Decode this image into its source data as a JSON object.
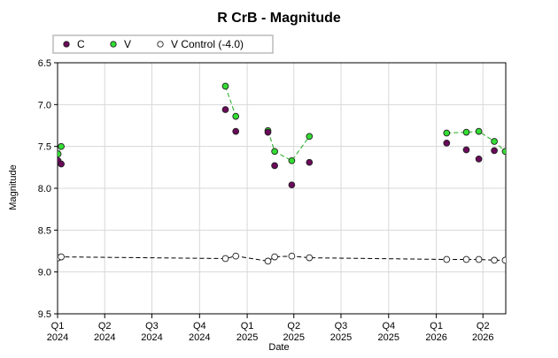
{
  "chart_data": {
    "type": "scatter",
    "title": "R CrB - Magnitude",
    "xlabel": "Date",
    "ylabel": "Magnitude",
    "y_axis_inverted": true,
    "ylim": [
      6.5,
      9.5
    ],
    "yticks": [
      "6.5",
      "7.0",
      "7.5",
      "8.0",
      "8.5",
      "9.0",
      "9.5"
    ],
    "xlim": [
      "2024-01-01",
      "2026-05-15"
    ],
    "xticks": [
      {
        "date": "2024-01-01",
        "quarter": "Q1",
        "year": "2024"
      },
      {
        "date": "2024-04-01",
        "quarter": "Q2",
        "year": "2024"
      },
      {
        "date": "2024-07-01",
        "quarter": "Q3",
        "year": "2024"
      },
      {
        "date": "2024-10-01",
        "quarter": "Q4",
        "year": "2024"
      },
      {
        "date": "2025-01-01",
        "quarter": "Q1",
        "year": "2025"
      },
      {
        "date": "2025-04-01",
        "quarter": "Q2",
        "year": "2025"
      },
      {
        "date": "2025-07-01",
        "quarter": "Q3",
        "year": "2025"
      },
      {
        "date": "2025-10-01",
        "quarter": "Q4",
        "year": "2025"
      },
      {
        "date": "2026-01-01",
        "quarter": "Q1",
        "year": "2026"
      },
      {
        "date": "2026-04-01",
        "quarter": "Q2",
        "year": "2026"
      }
    ],
    "grid": true,
    "legend_position": "top-left",
    "series": [
      {
        "name": "C",
        "color": "#6a0a5a",
        "fill": "#6a0a5a",
        "connected": false,
        "points": [
          {
            "x": "2024-01-02",
            "y": 7.67
          },
          {
            "x": "2024-01-08",
            "y": 7.71
          },
          {
            "x": "2024-11-20",
            "y": 7.06
          },
          {
            "x": "2024-12-10",
            "y": 7.32
          },
          {
            "x": "2025-02-10",
            "y": 7.33
          },
          {
            "x": "2025-02-23",
            "y": 7.73
          },
          {
            "x": "2025-03-28",
            "y": 7.96
          },
          {
            "x": "2025-05-01",
            "y": 7.69
          },
          {
            "x": "2026-01-21",
            "y": 7.46
          },
          {
            "x": "2026-02-28",
            "y": 7.54
          },
          {
            "x": "2026-03-24",
            "y": 7.65
          },
          {
            "x": "2026-04-23",
            "y": 7.55
          }
        ]
      },
      {
        "name": "V",
        "color": "#22aa22",
        "fill": "#33dd33",
        "connected": true,
        "line_style": "dashed",
        "segments": [
          [
            {
              "x": "2024-01-02",
              "y": 7.59
            },
            {
              "x": "2024-01-08",
              "y": 7.5
            }
          ],
          [
            {
              "x": "2024-11-20",
              "y": 6.78
            },
            {
              "x": "2024-12-10",
              "y": 7.14
            }
          ],
          [
            {
              "x": "2025-02-10",
              "y": 7.31
            },
            {
              "x": "2025-02-23",
              "y": 7.56
            },
            {
              "x": "2025-03-28",
              "y": 7.67
            },
            {
              "x": "2025-05-01",
              "y": 7.38
            }
          ],
          [
            {
              "x": "2026-01-21",
              "y": 7.34
            },
            {
              "x": "2026-02-28",
              "y": 7.33
            },
            {
              "x": "2026-03-24",
              "y": 7.32
            },
            {
              "x": "2026-04-23",
              "y": 7.44
            },
            {
              "x": "2026-05-14",
              "y": 7.56
            }
          ]
        ]
      },
      {
        "name": "V Control (-4.0)",
        "color": "#000000",
        "fill": "#ffffff",
        "connected": true,
        "line_style": "dashed",
        "segments": [
          [
            {
              "x": "2024-01-02",
              "y": 8.83
            },
            {
              "x": "2024-01-08",
              "y": 8.82
            },
            {
              "x": "2024-11-20",
              "y": 8.84
            },
            {
              "x": "2024-12-10",
              "y": 8.81
            },
            {
              "x": "2025-02-10",
              "y": 8.87
            },
            {
              "x": "2025-02-23",
              "y": 8.82
            },
            {
              "x": "2025-03-28",
              "y": 8.81
            },
            {
              "x": "2025-05-01",
              "y": 8.83
            },
            {
              "x": "2026-01-21",
              "y": 8.85
            },
            {
              "x": "2026-02-28",
              "y": 8.85
            },
            {
              "x": "2026-03-24",
              "y": 8.85
            },
            {
              "x": "2026-04-23",
              "y": 8.86
            },
            {
              "x": "2026-05-14",
              "y": 8.86
            }
          ]
        ]
      }
    ]
  }
}
